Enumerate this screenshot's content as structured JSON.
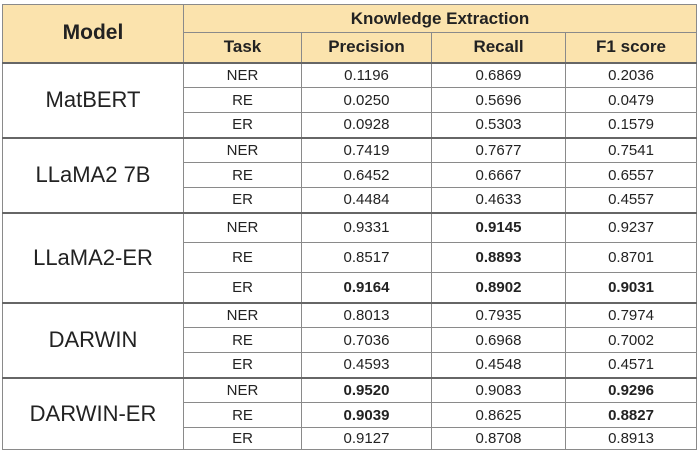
{
  "header": {
    "model": "Model",
    "group": "Knowledge Extraction",
    "columns": [
      "Task",
      "Precision",
      "Recall",
      "F1 score"
    ]
  },
  "groups": [
    {
      "model": "MatBERT",
      "rows": [
        {
          "task": "NER",
          "precision": "0.1196",
          "recall": "0.6869",
          "f1": "0.2036",
          "bold": []
        },
        {
          "task": "RE",
          "precision": "0.0250",
          "recall": "0.5696",
          "f1": "0.0479",
          "bold": []
        },
        {
          "task": "ER",
          "precision": "0.0928",
          "recall": "0.5303",
          "f1": "0.1579",
          "bold": []
        }
      ]
    },
    {
      "model": "LLaMA2 7B",
      "rows": [
        {
          "task": "NER",
          "precision": "0.7419",
          "recall": "0.7677",
          "f1": "0.7541",
          "bold": []
        },
        {
          "task": "RE",
          "precision": "0.6452",
          "recall": "0.6667",
          "f1": "0.6557",
          "bold": []
        },
        {
          "task": "ER",
          "precision": "0.4484",
          "recall": "0.4633",
          "f1": "0.4557",
          "bold": []
        }
      ]
    },
    {
      "model": "LLaMA2-ER",
      "rows": [
        {
          "task": "NER",
          "precision": "0.9331",
          "recall": "0.9145",
          "f1": "0.9237",
          "bold": [
            "recall"
          ]
        },
        {
          "task": "RE",
          "precision": "0.8517",
          "recall": "0.8893",
          "f1": "0.8701",
          "bold": [
            "recall"
          ]
        },
        {
          "task": "ER",
          "precision": "0.9164",
          "recall": "0.8902",
          "f1": "0.9031",
          "bold": [
            "precision",
            "recall",
            "f1"
          ]
        }
      ]
    },
    {
      "model": "DARWIN",
      "rows": [
        {
          "task": "NER",
          "precision": "0.8013",
          "recall": "0.7935",
          "f1": "0.7974",
          "bold": []
        },
        {
          "task": "RE",
          "precision": "0.7036",
          "recall": "0.6968",
          "f1": "0.7002",
          "bold": []
        },
        {
          "task": "ER",
          "precision": "0.4593",
          "recall": "0.4548",
          "f1": "0.4571",
          "bold": []
        }
      ]
    },
    {
      "model": "DARWIN-ER",
      "rows": [
        {
          "task": "NER",
          "precision": "0.9520",
          "recall": "0.9083",
          "f1": "0.9296",
          "bold": [
            "precision",
            "f1"
          ]
        },
        {
          "task": "RE",
          "precision": "0.9039",
          "recall": "0.8625",
          "f1": "0.8827",
          "bold": [
            "precision",
            "f1"
          ]
        },
        {
          "task": "ER",
          "precision": "0.9127",
          "recall": "0.8708",
          "f1": "0.8913",
          "bold": []
        }
      ]
    }
  ],
  "colors": {
    "header_bg": "#fbe3ad",
    "border": "#8a8a8a"
  }
}
